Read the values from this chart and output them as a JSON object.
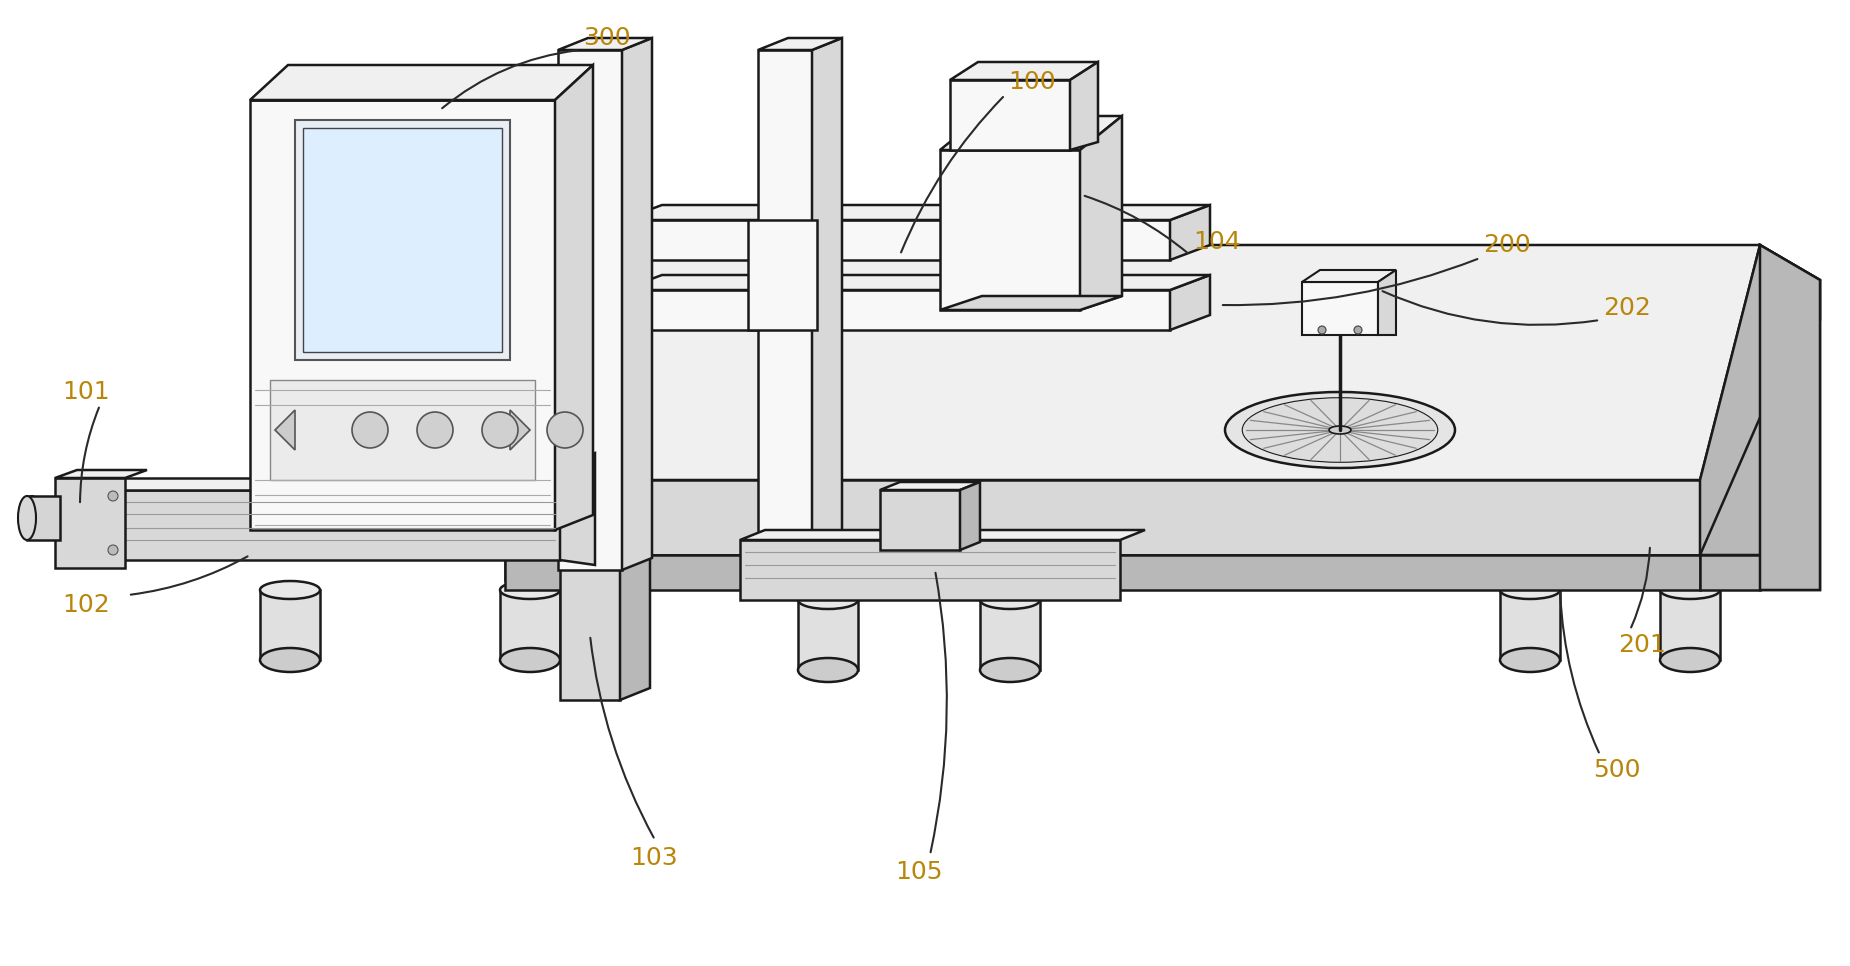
{
  "bg_color": "#ffffff",
  "line_color": "#1a1a1a",
  "line_width": 1.8,
  "label_fontsize": 18,
  "label_color": "#b8860b",
  "face_light": "#f0f0f0",
  "face_mid": "#d8d8d8",
  "face_dark": "#b8b8b8",
  "face_white": "#f8f8f8"
}
